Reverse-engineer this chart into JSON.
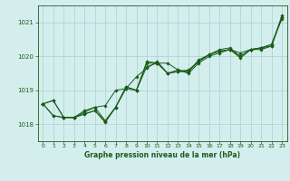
{
  "title": "Graphe pression niveau de la mer (hPa)",
  "bg_color": "#d4eeee",
  "grid_color": "#b0d4d4",
  "line_color": "#1a5c1a",
  "xlim": [
    -0.5,
    23.5
  ],
  "ylim": [
    1017.5,
    1021.5
  ],
  "yticks": [
    1018,
    1019,
    1020,
    1021
  ],
  "xticks": [
    0,
    1,
    2,
    3,
    4,
    5,
    6,
    7,
    8,
    9,
    10,
    11,
    12,
    13,
    14,
    15,
    16,
    17,
    18,
    19,
    20,
    21,
    22,
    23
  ],
  "series": [
    [
      1018.6,
      1018.7,
      1018.2,
      1018.2,
      1018.3,
      1018.4,
      1018.1,
      1018.5,
      1019.1,
      1019.0,
      1019.8,
      1019.8,
      1019.8,
      1019.6,
      1019.5,
      1019.8,
      1020.0,
      1020.1,
      1020.2,
      1020.1,
      1020.2,
      1020.2,
      1020.3,
      1021.2
    ],
    [
      1018.6,
      1018.7,
      1018.2,
      1018.2,
      1018.3,
      1018.4,
      1018.05,
      1018.5,
      1019.1,
      1019.0,
      1019.85,
      1019.8,
      1019.5,
      1019.6,
      1019.55,
      1019.9,
      1020.05,
      1020.2,
      1020.25,
      1020.0,
      1020.2,
      1020.25,
      1020.35,
      1021.15
    ],
    [
      1018.6,
      1018.25,
      1018.2,
      1018.2,
      1018.4,
      1018.5,
      1018.55,
      1019.0,
      1019.05,
      1019.4,
      1019.65,
      1019.85,
      1019.5,
      1019.55,
      1019.6,
      1019.85,
      1020.05,
      1020.15,
      1020.2,
      1019.95,
      1020.2,
      1020.25,
      1020.3,
      1021.15
    ],
    [
      1018.6,
      1018.25,
      1018.2,
      1018.2,
      1018.35,
      1018.5,
      1018.1,
      1018.5,
      1019.05,
      1019.0,
      1019.7,
      1019.8,
      1019.5,
      1019.55,
      1019.55,
      1019.85,
      1020.05,
      1020.15,
      1020.2,
      1020.0,
      1020.2,
      1020.25,
      1020.35,
      1021.1
    ]
  ]
}
